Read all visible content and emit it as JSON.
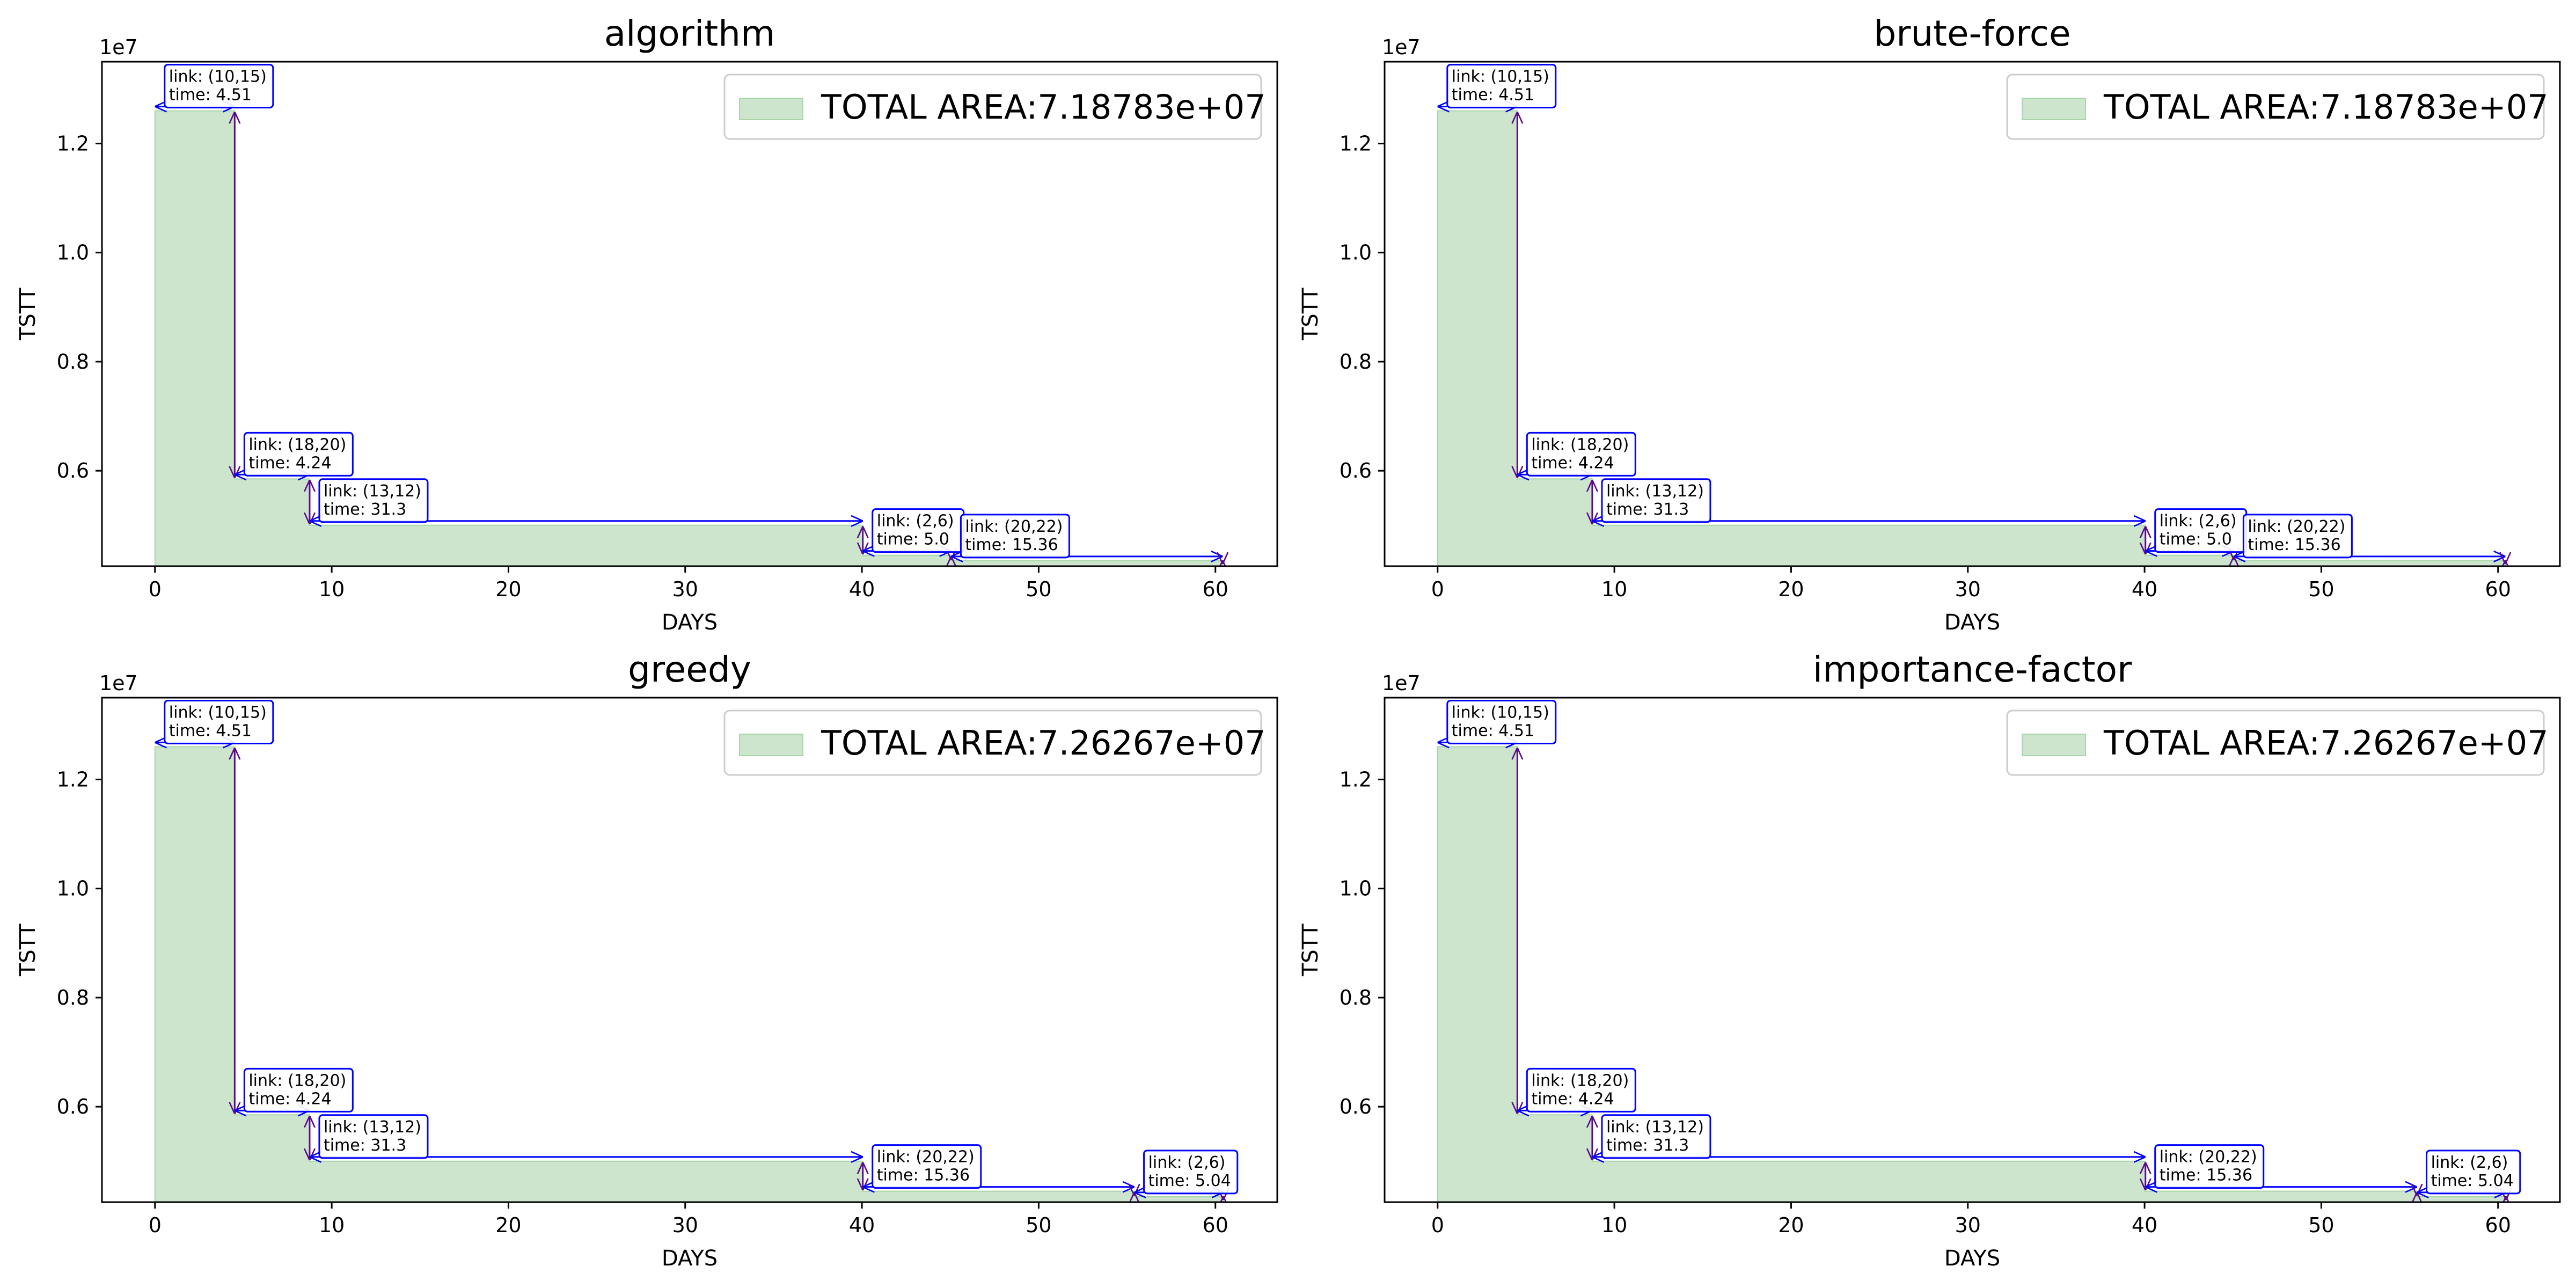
{
  "colors": {
    "fill": "#cce5cc",
    "fill_edge": "#a8d5a8",
    "arrow": "#0000ff",
    "vertical_arrow": "#5a0a8a",
    "box_edge": "#0000ff",
    "axis": "#000000"
  },
  "chart_data": [
    {
      "type": "area",
      "title": "algorithm",
      "xlabel": "DAYS",
      "ylabel": "TSTT",
      "y_offset_label": "1e7",
      "xlim": [
        -3.0,
        63.5
      ],
      "ylim": [
        4250000.0,
        13500000.0
      ],
      "xticks": [
        0,
        10,
        20,
        30,
        40,
        50,
        60
      ],
      "yticks": [
        6000000.0,
        8000000.0,
        10000000.0,
        12000000.0
      ],
      "ytick_labels": [
        "0.6",
        "0.8",
        "1.0",
        "1.2"
      ],
      "legend": {
        "label": "TOTAL AREA:7.18783e+07",
        "position": "upper right"
      },
      "steps": [
        {
          "x0": 0,
          "x1": 4.51,
          "y": 12600000.0
        },
        {
          "x0": 4.51,
          "x1": 8.75,
          "y": 5850000.0
        },
        {
          "x0": 8.75,
          "x1": 40.05,
          "y": 5000000.0
        },
        {
          "x0": 40.05,
          "x1": 45.05,
          "y": 4450000.0
        },
        {
          "x0": 45.05,
          "x1": 60.41,
          "y": 4350000.0
        }
      ],
      "annotations": [
        {
          "line1": "link: (10,15)",
          "line2": "time: 4.51"
        },
        {
          "line1": "link: (18,20)",
          "line2": "time: 4.24"
        },
        {
          "line1": "link: (13,12)",
          "line2": "time: 31.3"
        },
        {
          "line1": "link: (2,6)",
          "line2": "time: 5.0"
        },
        {
          "line1": "link: (20,22)",
          "line2": "time: 15.36"
        }
      ]
    },
    {
      "type": "area",
      "title": "brute-force",
      "xlabel": "DAYS",
      "ylabel": "TSTT",
      "y_offset_label": "1e7",
      "xlim": [
        -3.0,
        63.5
      ],
      "ylim": [
        4250000.0,
        13500000.0
      ],
      "xticks": [
        0,
        10,
        20,
        30,
        40,
        50,
        60
      ],
      "yticks": [
        6000000.0,
        8000000.0,
        10000000.0,
        12000000.0
      ],
      "ytick_labels": [
        "0.6",
        "0.8",
        "1.0",
        "1.2"
      ],
      "legend": {
        "label": "TOTAL AREA:7.18783e+07",
        "position": "upper right"
      },
      "steps": [
        {
          "x0": 0,
          "x1": 4.51,
          "y": 12600000.0
        },
        {
          "x0": 4.51,
          "x1": 8.75,
          "y": 5850000.0
        },
        {
          "x0": 8.75,
          "x1": 40.05,
          "y": 5000000.0
        },
        {
          "x0": 40.05,
          "x1": 45.05,
          "y": 4450000.0
        },
        {
          "x0": 45.05,
          "x1": 60.41,
          "y": 4350000.0
        }
      ],
      "annotations": [
        {
          "line1": "link: (10,15)",
          "line2": "time: 4.51"
        },
        {
          "line1": "link: (18,20)",
          "line2": "time: 4.24"
        },
        {
          "line1": "link: (13,12)",
          "line2": "time: 31.3"
        },
        {
          "line1": "link: (2,6)",
          "line2": "time: 5.0"
        },
        {
          "line1": "link: (20,22)",
          "line2": "time: 15.36"
        }
      ]
    },
    {
      "type": "area",
      "title": "greedy",
      "xlabel": "DAYS",
      "ylabel": "TSTT",
      "y_offset_label": "1e7",
      "xlim": [
        -3.0,
        63.5
      ],
      "ylim": [
        4250000.0,
        13500000.0
      ],
      "xticks": [
        0,
        10,
        20,
        30,
        40,
        50,
        60
      ],
      "yticks": [
        6000000.0,
        8000000.0,
        10000000.0,
        12000000.0
      ],
      "ytick_labels": [
        "0.6",
        "0.8",
        "1.0",
        "1.2"
      ],
      "legend": {
        "label": "TOTAL AREA:7.26267e+07",
        "position": "upper right"
      },
      "steps": [
        {
          "x0": 0,
          "x1": 4.51,
          "y": 12600000.0
        },
        {
          "x0": 4.51,
          "x1": 8.75,
          "y": 5850000.0
        },
        {
          "x0": 8.75,
          "x1": 40.05,
          "y": 5000000.0
        },
        {
          "x0": 40.05,
          "x1": 55.41,
          "y": 4450000.0
        },
        {
          "x0": 55.41,
          "x1": 60.45,
          "y": 4350000.0
        }
      ],
      "annotations": [
        {
          "line1": "link: (10,15)",
          "line2": "time: 4.51"
        },
        {
          "line1": "link: (18,20)",
          "line2": "time: 4.24"
        },
        {
          "line1": "link: (13,12)",
          "line2": "time: 31.3"
        },
        {
          "line1": "link: (20,22)",
          "line2": "time: 15.36"
        },
        {
          "line1": "link: (2,6)",
          "line2": "time: 5.04"
        }
      ]
    },
    {
      "type": "area",
      "title": "importance-factor",
      "xlabel": "DAYS",
      "ylabel": "TSTT",
      "y_offset_label": "1e7",
      "xlim": [
        -3.0,
        63.5
      ],
      "ylim": [
        4250000.0,
        13500000.0
      ],
      "xticks": [
        0,
        10,
        20,
        30,
        40,
        50,
        60
      ],
      "yticks": [
        6000000.0,
        8000000.0,
        10000000.0,
        12000000.0
      ],
      "ytick_labels": [
        "0.6",
        "0.8",
        "1.0",
        "1.2"
      ],
      "legend": {
        "label": "TOTAL AREA:7.26267e+07",
        "position": "upper right"
      },
      "steps": [
        {
          "x0": 0,
          "x1": 4.51,
          "y": 12600000.0
        },
        {
          "x0": 4.51,
          "x1": 8.75,
          "y": 5850000.0
        },
        {
          "x0": 8.75,
          "x1": 40.05,
          "y": 5000000.0
        },
        {
          "x0": 40.05,
          "x1": 55.41,
          "y": 4450000.0
        },
        {
          "x0": 55.41,
          "x1": 60.45,
          "y": 4350000.0
        }
      ],
      "annotations": [
        {
          "line1": "link: (10,15)",
          "line2": "time: 4.51"
        },
        {
          "line1": "link: (18,20)",
          "line2": "time: 4.24"
        },
        {
          "line1": "link: (13,12)",
          "line2": "time: 31.3"
        },
        {
          "line1": "link: (20,22)",
          "line2": "time: 15.36"
        },
        {
          "line1": "link: (2,6)",
          "line2": "time: 5.04"
        }
      ]
    }
  ]
}
